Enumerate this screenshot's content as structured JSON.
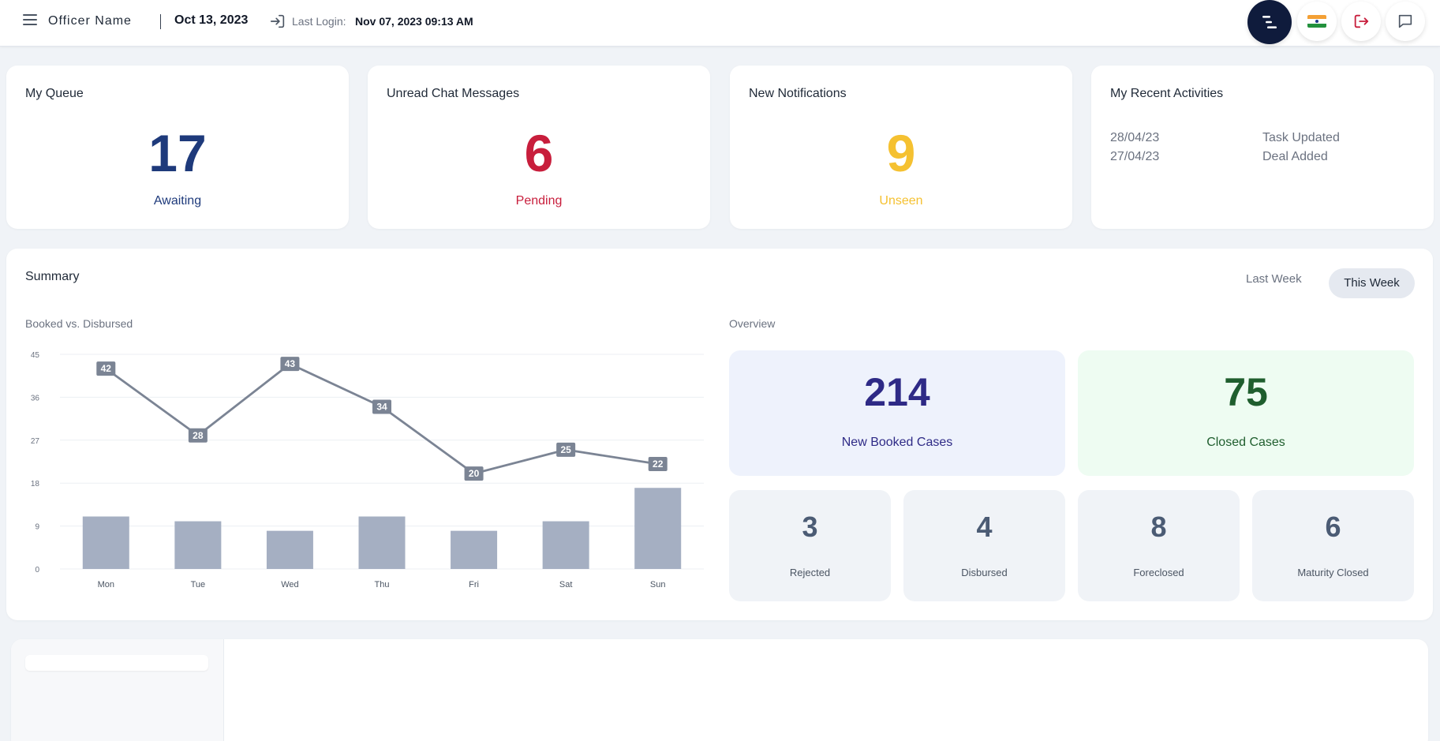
{
  "header": {
    "officer_name": "Officer Name",
    "date": "Oct 13, 2023",
    "last_login_label": "Last Login:",
    "last_login_value": "Nov 07, 2023 09:13 AM",
    "icons": [
      "menu-icon",
      "sort-icon",
      "india-flag-icon",
      "logout-icon",
      "chat-icon"
    ]
  },
  "stats": [
    {
      "title": "My Queue",
      "value": "17",
      "caption": "Awaiting",
      "color": "#1e3a7b"
    },
    {
      "title": "Unread Chat Messages",
      "value": "6",
      "caption": "Pending",
      "color": "#c81e3c"
    },
    {
      "title": "New Notifications",
      "value": "9",
      "caption": "Unseen",
      "color": "#f5c131"
    }
  ],
  "activities": {
    "title": "My Recent Activities",
    "items": [
      {
        "date": "28/04/23",
        "text": "Task Updated"
      },
      {
        "date": "27/04/23",
        "text": "Deal Added"
      }
    ]
  },
  "summary": {
    "title": "Summary",
    "last_week": "Last Week",
    "this_week": "This Week",
    "chart_title": "Booked vs. Disbursed",
    "overview_title": "Overview"
  },
  "overview": {
    "big": [
      {
        "value": "214",
        "label": "New Booked Cases",
        "bg": "#eef2fc",
        "color": "#2e2a86"
      },
      {
        "value": "75",
        "label": "Closed Cases",
        "bg": "#eefcf2",
        "color": "#1f5e2e"
      }
    ],
    "small": [
      {
        "value": "3",
        "label": "Rejected"
      },
      {
        "value": "4",
        "label": "Disbursed"
      },
      {
        "value": "8",
        "label": "Foreclosed"
      },
      {
        "value": "6",
        "label": "Maturity Closed"
      }
    ]
  },
  "chart_data": {
    "type": "bar",
    "title": "Booked vs. Disbursed",
    "categories": [
      "Mon",
      "Tue",
      "Wed",
      "Thu",
      "Fri",
      "Sat",
      "Sun"
    ],
    "ylim": [
      0,
      45
    ],
    "yticks": [
      0,
      9,
      18,
      27,
      36,
      45
    ],
    "grid": true,
    "series": [
      {
        "type": "bar",
        "values": [
          11,
          10,
          8,
          11,
          8,
          10,
          17
        ],
        "color": "#a5afc2"
      },
      {
        "type": "line",
        "values": [
          42,
          28,
          43,
          34,
          20,
          25,
          22
        ],
        "color": "#7b8494"
      }
    ]
  }
}
